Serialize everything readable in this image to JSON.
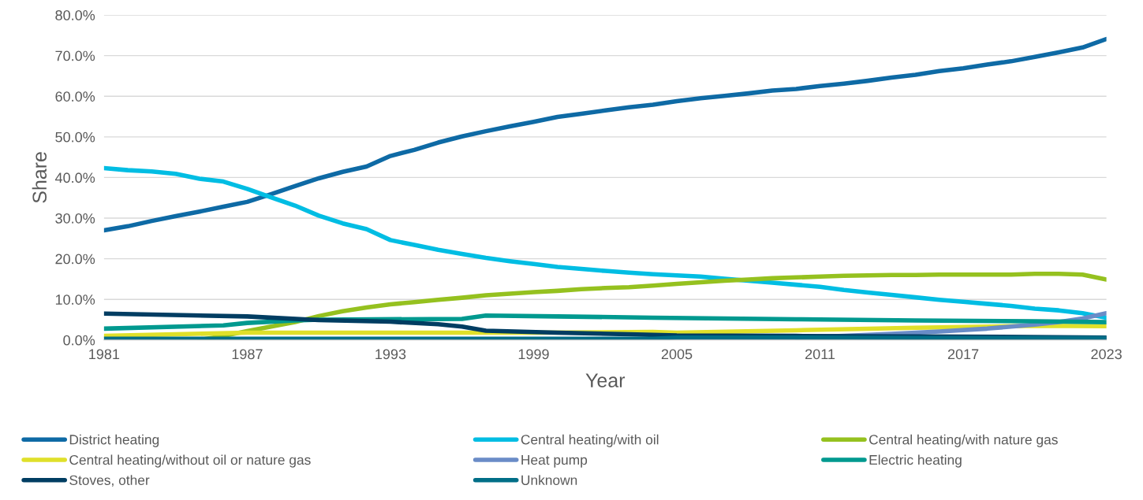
{
  "chart_data": {
    "type": "line",
    "xlabel": "Year",
    "ylabel": "Share",
    "xlim": [
      1981,
      2023
    ],
    "xticks": [
      1981,
      1987,
      1993,
      1999,
      2005,
      2011,
      2017,
      2023
    ],
    "ylim": [
      0,
      80
    ],
    "yticks": [
      {
        "value": 0,
        "label": "0.0%"
      },
      {
        "value": 10,
        "label": "10.0%"
      },
      {
        "value": 20,
        "label": "20.0%"
      },
      {
        "value": 30,
        "label": "30.0%"
      },
      {
        "value": 40,
        "label": "40.0%"
      },
      {
        "value": 50,
        "label": "50.0%"
      },
      {
        "value": 60,
        "label": "60.0%"
      },
      {
        "value": 70,
        "label": "70.0%"
      },
      {
        "value": 80,
        "label": "80.0%"
      }
    ],
    "grid": "y",
    "legend": "bottom",
    "marker": "none",
    "line_style": "solid",
    "x": [
      1981,
      1982,
      1983,
      1984,
      1985,
      1986,
      1987,
      1988,
      1989,
      1990,
      1991,
      1992,
      1993,
      1994,
      1995,
      1996,
      1997,
      1998,
      1999,
      2000,
      2001,
      2002,
      2003,
      2004,
      2005,
      2006,
      2007,
      2008,
      2009,
      2010,
      2011,
      2012,
      2013,
      2014,
      2015,
      2016,
      2017,
      2018,
      2019,
      2020,
      2021,
      2022,
      2023
    ],
    "series": [
      {
        "name": "District heating",
        "color": "#0e6aa5",
        "values": [
          27.0,
          28.0,
          29.3,
          30.5,
          31.6,
          32.8,
          34.0,
          35.9,
          37.9,
          39.8,
          41.4,
          42.7,
          45.3,
          46.8,
          48.6,
          50.1,
          51.4,
          52.6,
          53.7,
          54.9,
          55.7,
          56.5,
          57.3,
          57.9,
          58.8,
          59.5,
          60.1,
          60.7,
          61.4,
          61.8,
          62.5,
          63.1,
          63.8,
          64.6,
          65.3,
          66.2,
          66.9,
          67.8,
          68.6,
          69.7,
          70.8,
          72.0,
          74.1
        ]
      },
      {
        "name": "Central heating/with oil",
        "color": "#00bde3",
        "values": [
          42.3,
          41.8,
          41.5,
          40.9,
          39.7,
          39.0,
          37.2,
          35.1,
          33.1,
          30.6,
          28.7,
          27.3,
          24.6,
          23.4,
          22.2,
          21.2,
          20.2,
          19.4,
          18.7,
          18.0,
          17.5,
          17.0,
          16.6,
          16.2,
          15.9,
          15.6,
          15.1,
          14.6,
          14.1,
          13.6,
          13.1,
          12.3,
          11.7,
          11.1,
          10.5,
          9.9,
          9.4,
          8.9,
          8.4,
          7.7,
          7.3,
          6.6,
          5.5
        ]
      },
      {
        "name": "Central heating/with nature gas",
        "color": "#95c11f",
        "values": [
          null,
          null,
          null,
          null,
          0,
          1.0,
          2.2,
          3.3,
          4.4,
          5.9,
          7.1,
          8.0,
          8.8,
          9.3,
          9.9,
          10.4,
          11.0,
          11.4,
          11.8,
          12.1,
          12.5,
          12.8,
          13.0,
          13.4,
          13.8,
          14.2,
          14.6,
          14.9,
          15.2,
          15.4,
          15.6,
          15.8,
          15.9,
          16.0,
          16.0,
          16.1,
          16.1,
          16.1,
          16.1,
          16.3,
          16.3,
          16.1,
          14.9
        ]
      },
      {
        "name": "Central heating/without oil or nature gas",
        "color": "#dfe02a",
        "x": [
          1981,
          1987,
          1993,
          1999,
          2004,
          2005,
          2010,
          2015,
          2020,
          2023
        ],
        "values": [
          1.0,
          1.8,
          1.8,
          1.8,
          2.0,
          1.8,
          2.4,
          3.0,
          3.5,
          3.4
        ]
      },
      {
        "name": "Heat pump",
        "color": "#6a8cc7",
        "x": [
          2010,
          2012,
          2014,
          2016,
          2018,
          2020,
          2021,
          2022,
          2023
        ],
        "values": [
          0.6,
          1.0,
          1.5,
          2.1,
          2.8,
          3.8,
          4.4,
          5.3,
          6.6
        ]
      },
      {
        "name": "Electric heating",
        "color": "#00998f",
        "x": [
          1981,
          1986,
          1987,
          1989,
          1990,
          1996,
          1997,
          2000,
          2004,
          2010,
          2015,
          2020,
          2023
        ],
        "values": [
          2.8,
          3.6,
          4.2,
          4.8,
          5.0,
          5.2,
          6.0,
          5.8,
          5.5,
          5.1,
          4.8,
          4.6,
          4.4
        ]
      },
      {
        "name": "Stoves, other",
        "color": "#003d62",
        "x": [
          1981,
          1987,
          1990,
          1993,
          1995,
          1996,
          1997,
          2000,
          2003,
          2005,
          2010,
          2015,
          2023
        ],
        "values": [
          6.5,
          5.8,
          4.9,
          4.5,
          3.9,
          3.3,
          2.3,
          1.8,
          1.4,
          1.1,
          1.0,
          0.9,
          0.6
        ]
      },
      {
        "name": "Unknown",
        "color": "#006e87",
        "x": [
          1981,
          2004,
          2005,
          2010,
          2015,
          2023
        ],
        "values": [
          0.3,
          0.3,
          0.6,
          0.6,
          0.5,
          0.5
        ]
      }
    ]
  }
}
